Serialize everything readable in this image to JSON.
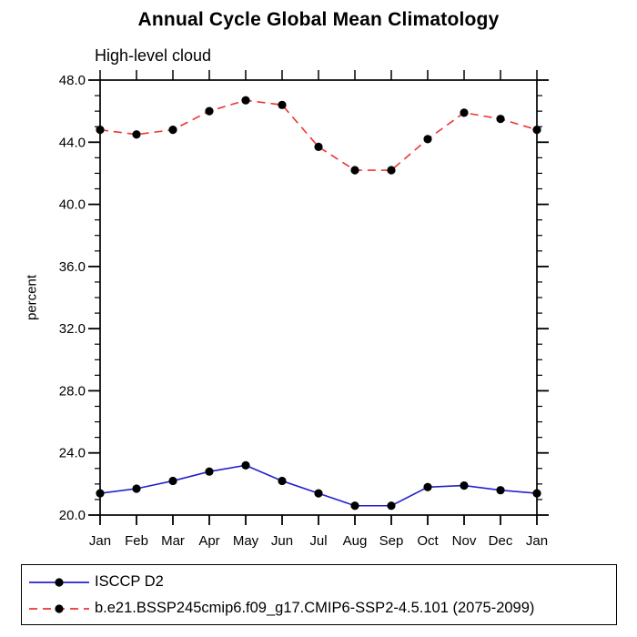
{
  "page": {
    "background": "#FFFFFF",
    "axis_color": "#000000"
  },
  "chart_data": {
    "type": "line",
    "title": "Annual Cycle Global Mean Climatology",
    "subtitle": "High-level cloud",
    "ylabel": "percent",
    "x_categories": [
      "Jan",
      "Feb",
      "Mar",
      "Apr",
      "May",
      "Jun",
      "Jul",
      "Aug",
      "Sep",
      "Oct",
      "Nov",
      "Dec",
      "Jan"
    ],
    "ylim": [
      20.0,
      48.0
    ],
    "ytick_major_values": [
      20,
      24,
      28,
      32,
      36,
      40,
      44,
      48
    ],
    "ytick_major_labels": [
      "20.0",
      "24.0",
      "28.0",
      "32.0",
      "36.0",
      "40.0",
      "44.0",
      "48.0"
    ],
    "ytick_minor_step": 1.0,
    "grid": false,
    "legend_position": "bottom-left",
    "axis_color": "#000000",
    "marker_color": "#000000",
    "series": [
      {
        "name": "ISCCP D2",
        "color": "#2222CC",
        "line_style": "solid",
        "marker": "filled-circle",
        "values": [
          21.4,
          21.7,
          22.2,
          22.8,
          23.2,
          22.2,
          21.4,
          20.6,
          20.6,
          21.8,
          21.9,
          21.6,
          21.4
        ]
      },
      {
        "name": "b.e21.BSSP245cmip6.f09_g17.CMIP6-SSP2-4.5.101 (2075-2099)",
        "color": "#EE3333",
        "line_style": "dashed",
        "marker": "filled-circle",
        "values": [
          44.8,
          44.5,
          44.8,
          46.0,
          46.7,
          46.4,
          43.7,
          42.2,
          42.2,
          44.2,
          45.9,
          45.5,
          44.8
        ]
      }
    ]
  }
}
